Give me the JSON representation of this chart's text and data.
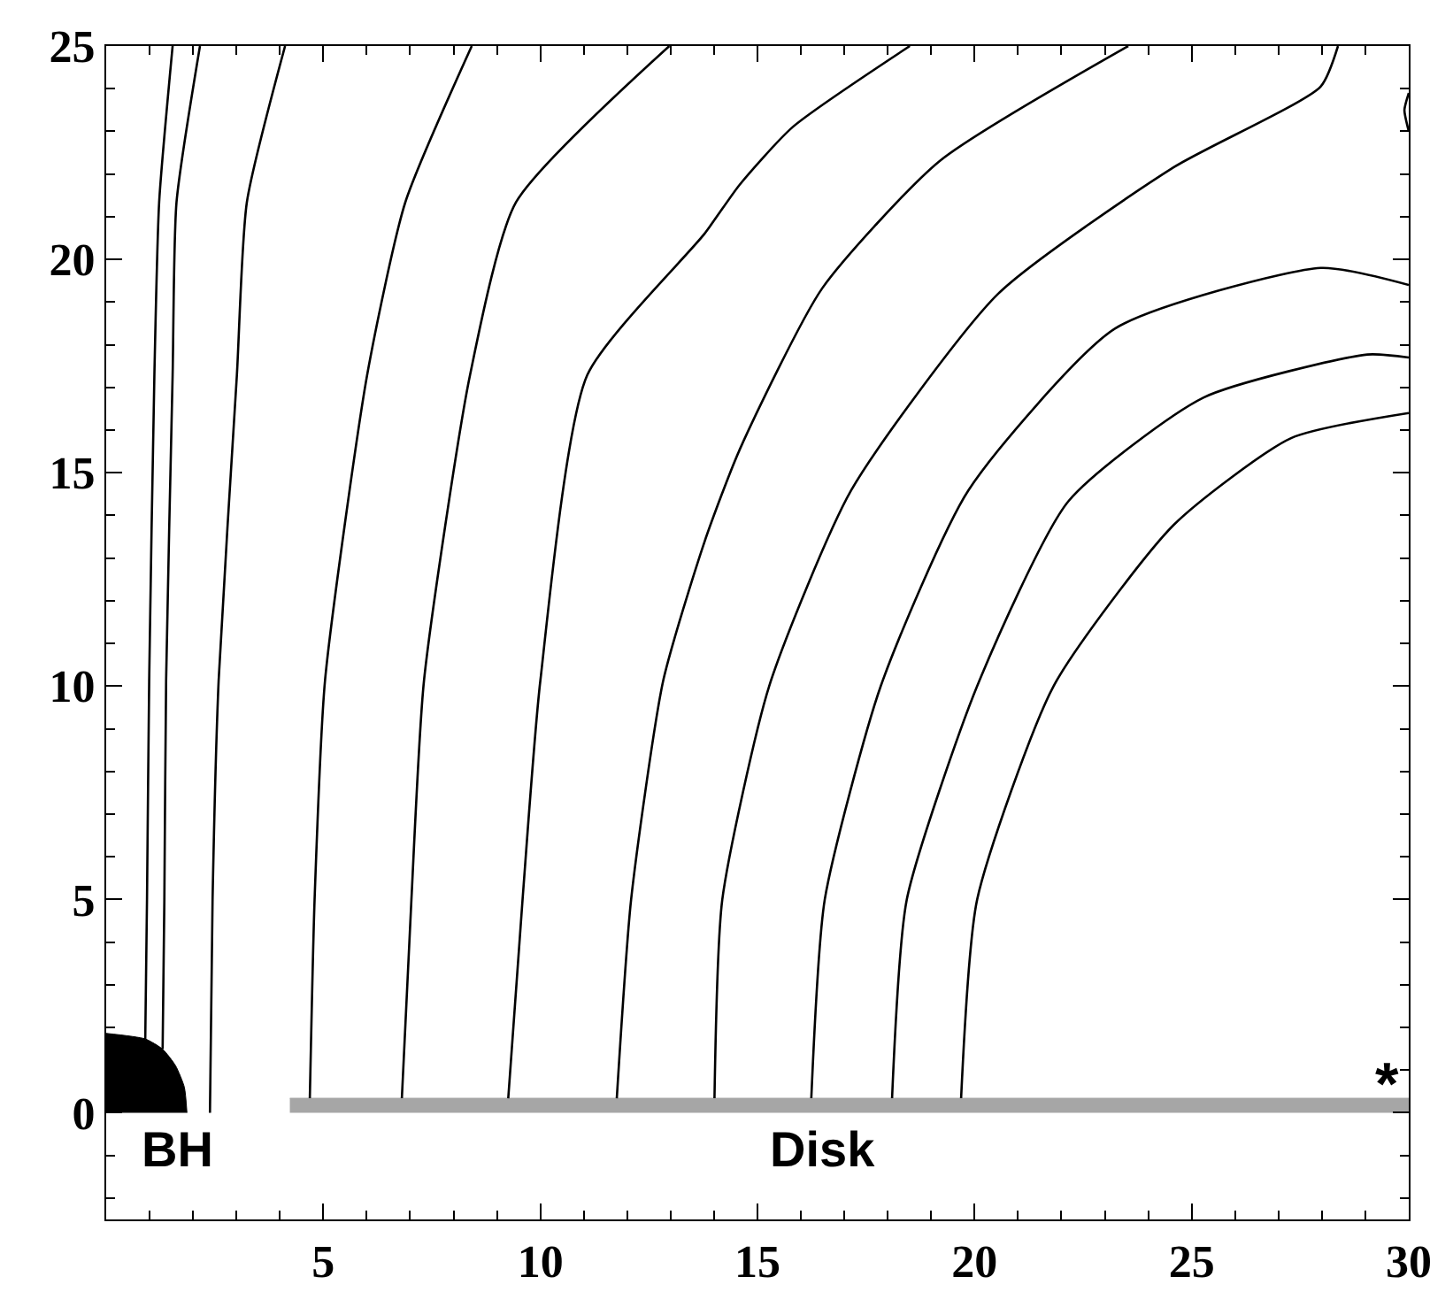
{
  "chart_data": {
    "type": "line",
    "xlim": [
      0,
      30
    ],
    "ylim": [
      -2.5,
      25
    ],
    "xticks": [
      {
        "value": 0,
        "label": null
      },
      {
        "value": 1,
        "label": null
      },
      {
        "value": 2,
        "label": null
      },
      {
        "value": 3,
        "label": null
      },
      {
        "value": 4,
        "label": null
      },
      5,
      {
        "value": 6,
        "label": null
      },
      {
        "value": 7,
        "label": null
      },
      {
        "value": 8,
        "label": null
      },
      {
        "value": 9,
        "label": null
      },
      10,
      {
        "value": 11,
        "label": null
      },
      {
        "value": 12,
        "label": null
      },
      {
        "value": 13,
        "label": null
      },
      {
        "value": 14,
        "label": null
      },
      15,
      {
        "value": 16,
        "label": null
      },
      {
        "value": 17,
        "label": null
      },
      {
        "value": 18,
        "label": null
      },
      {
        "value": 19,
        "label": null
      },
      20,
      {
        "value": 21,
        "label": null
      },
      {
        "value": 22,
        "label": null
      },
      {
        "value": 23,
        "label": null
      },
      {
        "value": 24,
        "label": null
      },
      25,
      {
        "value": 26,
        "label": null
      },
      {
        "value": 27,
        "label": null
      },
      {
        "value": 28,
        "label": null
      },
      {
        "value": 29,
        "label": null
      },
      30
    ],
    "yticks": [
      {
        "value": -2,
        "label": null
      },
      {
        "value": -1,
        "label": null
      },
      0,
      {
        "value": 1,
        "label": null
      },
      {
        "value": 2,
        "label": null
      },
      {
        "value": 3,
        "label": null
      },
      {
        "value": 4,
        "label": null
      },
      5,
      {
        "value": 6,
        "label": null
      },
      {
        "value": 7,
        "label": null
      },
      {
        "value": 8,
        "label": null
      },
      {
        "value": 9,
        "label": null
      },
      10,
      {
        "value": 11,
        "label": null
      },
      {
        "value": 12,
        "label": null
      },
      {
        "value": 13,
        "label": null
      },
      {
        "value": 14,
        "label": null
      },
      15,
      {
        "value": 16,
        "label": null
      },
      {
        "value": 17,
        "label": null
      },
      {
        "value": 18,
        "label": null
      },
      {
        "value": 19,
        "label": null
      },
      20,
      {
        "value": 21,
        "label": null
      },
      {
        "value": 22,
        "label": null
      },
      {
        "value": 23,
        "label": null
      },
      {
        "value": 24,
        "label": null
      },
      25
    ],
    "marker": "none",
    "line_style": "solid",
    "series": [
      {
        "type": "area",
        "color": "#000000",
        "x": [
          0,
          0.9,
          1.3,
          1.6,
          1.8,
          1.86
        ],
        "values": [
          1.86,
          1.73,
          1.49,
          1.1,
          0.6,
          0
        ]
      },
      {
        "type": "area",
        "color": "#a6a6a6",
        "x": [
          4.23,
          30
        ],
        "values": [
          0.34,
          0.34
        ]
      },
      {
        "color": "#000000",
        "x": [
          0.9,
          0.94,
          0.99,
          1.11,
          1.22,
          1.53
        ],
        "values": [
          1.73,
          5,
          10.13,
          17.29,
          21.34,
          25
        ]
      },
      {
        "color": "#000000",
        "x": [
          1.3,
          1.34,
          1.38,
          1.53,
          1.62,
          2.16
        ],
        "values": [
          1.49,
          5,
          10.13,
          17.29,
          21.34,
          25
        ]
      },
      {
        "color": "#000000",
        "x": [
          2.39,
          2.45,
          2.59,
          3.01,
          3.24,
          4.12
        ],
        "values": [
          0,
          5,
          10.13,
          17.29,
          21.34,
          25
        ]
      },
      {
        "color": "#000000",
        "x": [
          4.69,
          4.8,
          5.04,
          6.01,
          6.89,
          8.42
        ],
        "values": [
          0.34,
          5,
          10.13,
          17.29,
          21.34,
          25
        ]
      },
      {
        "color": "#000000",
        "x": [
          6.81,
          7.03,
          7.32,
          8.38,
          9.44,
          12.97
        ],
        "values": [
          0.34,
          5,
          10.13,
          17.29,
          21.34,
          25
        ]
      },
      {
        "color": "#000000",
        "x": [
          9.26,
          9.59,
          10.0,
          11.08,
          13.78,
          14.59,
          15.81,
          18.51
        ],
        "values": [
          0.34,
          5,
          10.13,
          17.29,
          20.6,
          21.75,
          23.1,
          25
        ]
      },
      {
        "color": "#000000",
        "x": [
          11.76,
          12.09,
          12.83,
          13.78,
          14.59,
          16.49,
          19.19,
          23.54
        ],
        "values": [
          0.34,
          5,
          10.13,
          13.38,
          15.54,
          19.32,
          22.3,
          25
        ]
      },
      {
        "color": "#000000",
        "x": [
          14.01,
          14.19,
          15.27,
          17.16,
          20.54,
          24.59,
          27.97,
          28.37
        ],
        "values": [
          0.34,
          5,
          10,
          14.59,
          19.19,
          22.16,
          24.05,
          25
        ]
      },
      {
        "color": "#000000",
        "x": [
          16.24,
          16.55,
          17.84,
          19.86,
          23.24,
          27.97,
          30
        ],
        "values": [
          0.34,
          5,
          10,
          14.59,
          18.38,
          19.8,
          19.4
        ]
      },
      {
        "color": "#000000",
        "x": [
          18.1,
          18.44,
          20.06,
          22.16,
          25.27,
          29.05,
          30
        ],
        "values": [
          0.34,
          5,
          10,
          14.33,
          16.76,
          17.77,
          17.7
        ]
      },
      {
        "color": "#000000",
        "x": [
          19.69,
          20.06,
          21.82,
          24.59,
          27.29,
          30
        ],
        "values": [
          0.34,
          5,
          10,
          13.78,
          15.81,
          16.4
        ]
      },
      {
        "color": "#000000",
        "x": [
          30,
          29.9,
          30
        ],
        "values": [
          23.9,
          23.5,
          23.0
        ]
      }
    ],
    "annotations": [
      "BH",
      "Disk",
      "*"
    ]
  }
}
